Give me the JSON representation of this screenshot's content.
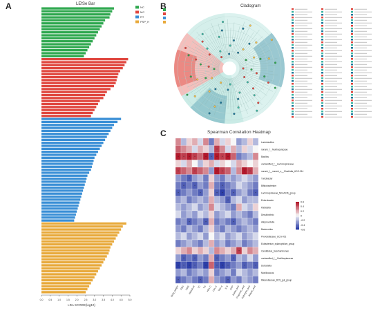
{
  "panels": {
    "a": {
      "letter": "A",
      "title": "LEfSe Bar",
      "xlabel": "LDA SCORE(log10)"
    },
    "b": {
      "letter": "B",
      "title": "Cladogram"
    },
    "c": {
      "letter": "C",
      "title": "Spearman Correlation Heatmap"
    }
  },
  "colors": {
    "NC": "#2fa84f",
    "MC": "#e0473f",
    "RT": "#3a8fd6",
    "PSP_H": "#e8a93a"
  },
  "chart_data": [
    {
      "type": "bar",
      "title": "LEfSe Bar",
      "xlabel": "LDA SCORE(log10)",
      "xlim": [
        0,
        5
      ],
      "xticks": [
        "0.0",
        "0.5",
        "1.0",
        "1.5",
        "2.0",
        "2.5",
        "3.0",
        "3.5",
        "4.0",
        "4.5",
        "5.0"
      ],
      "legend": [
        "NC",
        "MC",
        "RT",
        "PSP_H"
      ],
      "legend_position": "top-right",
      "series": [
        {
          "name": "NC",
          "values": [
            4.1,
            4.0,
            3.9,
            3.85,
            3.6,
            3.5,
            3.4,
            3.3,
            3.2,
            3.1,
            3.0,
            2.9,
            2.8,
            2.7,
            2.6,
            2.5,
            2.4
          ]
        },
        {
          "name": "MC",
          "values": [
            4.9,
            4.8,
            4.7,
            4.6,
            4.45,
            4.35,
            4.3,
            4.25,
            4.2,
            4.1,
            3.9,
            3.7,
            3.6,
            3.5,
            3.3,
            3.2,
            3.1,
            3.0,
            2.9,
            2.8
          ]
        },
        {
          "name": "RT",
          "values": [
            4.5,
            4.3,
            4.1,
            4.0,
            3.9,
            3.8,
            3.7,
            3.6,
            3.5,
            3.4,
            3.3,
            3.2,
            3.1,
            3.0,
            2.95,
            2.9,
            2.85,
            2.8,
            2.7,
            2.6,
            2.55,
            2.5,
            2.45,
            2.4,
            2.35,
            2.3,
            2.25,
            2.2,
            2.15,
            2.1,
            2.05,
            2.0,
            1.95,
            1.9,
            1.85
          ]
        },
        {
          "name": "PSP_H",
          "values": [
            4.8,
            4.6,
            4.5,
            4.4,
            4.3,
            4.2,
            4.1,
            4.0,
            3.9,
            3.85,
            3.8,
            3.7,
            3.6,
            3.5,
            3.4,
            3.3,
            3.2,
            3.1,
            3.0,
            2.9,
            2.8,
            2.7,
            2.6,
            2.5
          ]
        }
      ]
    },
    {
      "type": "heatmap",
      "title": "Spearman Correlation Heatmap",
      "rows": [
        "Lactobacillus",
        "norank_f__Muribaculaceae",
        "Bacillus",
        "unclassified_f__Lachnospiraceae",
        "norank_f__norank_o__Clostridia_UCG-014",
        "Turicibacter",
        "Bifidobacterium",
        "Lachnospiraceae_NK4A136_group",
        "Enterobacter",
        "Klebsiella",
        "Desulfovibrio",
        "Alloprevotella",
        "Bacteroides",
        "Prevotellaceae_UCG-001",
        "Eubacterium_xylanophilum_group",
        "Candidatus_Saccharimonas",
        "unclassified_f__Oscillospiraceae",
        "Dubosiella",
        "Monilicoccus",
        "Rikenellaceae_RC9_gut_group"
      ],
      "columns": [
        "Body_weight",
        "FBG",
        "FINS",
        "HOMA-IR",
        "TC",
        "TG",
        "HDL-C",
        "LDL-C",
        "TNF-α",
        "IL-6",
        "CRP",
        "Acetic_acid",
        "Propionic_acid",
        "Isobutyric_acid",
        "Butyric_acid"
      ],
      "colorbar": [
        "0.6",
        "0.4",
        "0.2",
        "0",
        "-0.2",
        "-0.4",
        "-0.6"
      ],
      "values": [
        [
          0.3,
          -0.2,
          0.1,
          0.2,
          -0.1,
          0.3,
          -0.4,
          0.2,
          -0.1,
          0.1,
          0.0,
          -0.3,
          -0.2,
          0.1,
          -0.2
        ],
        [
          0.4,
          0.3,
          0.2,
          -0.1,
          0.2,
          0.1,
          -0.2,
          0.5,
          0.3,
          -0.1,
          0.2,
          -0.2,
          0.1,
          -0.1,
          0.0
        ],
        [
          0.6,
          0.5,
          0.6,
          0.5,
          0.4,
          0.6,
          -0.5,
          0.6,
          0.5,
          0.6,
          0.4,
          -0.4,
          -0.3,
          -0.2,
          0.3
        ],
        [
          0.1,
          -0.1,
          0.2,
          0.0,
          -0.2,
          0.1,
          0.2,
          -0.1,
          0.1,
          0.0,
          -0.1,
          0.2,
          0.1,
          0.0,
          0.1
        ],
        [
          0.5,
          0.4,
          0.3,
          0.5,
          0.4,
          0.3,
          -0.3,
          0.6,
          0.5,
          0.4,
          -0.2,
          0.3,
          0.6,
          0.5,
          0.2
        ],
        [
          -0.3,
          -0.4,
          -0.5,
          -0.3,
          -0.2,
          -0.4,
          0.1,
          -0.3,
          -0.4,
          -0.2,
          -0.3,
          -0.2,
          -0.1,
          -0.2,
          -0.3
        ],
        [
          -0.4,
          -0.5,
          -0.4,
          -0.5,
          -0.3,
          -0.4,
          0.2,
          -0.4,
          -0.5,
          -0.4,
          -0.3,
          -0.1,
          -0.2,
          -0.3,
          -0.4
        ],
        [
          -0.5,
          -0.4,
          -0.3,
          -0.4,
          -0.5,
          -0.3,
          0.1,
          -0.5,
          -0.6,
          -0.4,
          -0.5,
          -0.3,
          -0.2,
          -0.4,
          -0.5
        ],
        [
          -0.3,
          -0.2,
          -0.4,
          -0.3,
          -0.2,
          -0.3,
          0.2,
          -0.2,
          -0.3,
          -0.5,
          -0.2,
          -0.1,
          -0.3,
          -0.2,
          -0.2
        ],
        [
          -0.2,
          -0.3,
          -0.2,
          -0.1,
          -0.3,
          -0.2,
          0.3,
          -0.1,
          -0.2,
          -0.3,
          -0.4,
          0.2,
          -0.1,
          -0.2,
          0.1
        ],
        [
          -0.1,
          -0.3,
          -0.2,
          -0.3,
          -0.1,
          -0.2,
          0.1,
          -0.3,
          -0.2,
          -0.1,
          -0.3,
          -0.2,
          -0.3,
          -0.4,
          -0.2
        ],
        [
          -0.4,
          -0.3,
          -0.5,
          -0.4,
          -0.3,
          -0.5,
          0.2,
          -0.4,
          -0.3,
          -0.4,
          -0.5,
          -0.3,
          -0.2,
          -0.3,
          -0.4
        ],
        [
          -0.3,
          -0.4,
          -0.2,
          -0.3,
          -0.4,
          -0.2,
          0.1,
          -0.3,
          -0.4,
          -0.2,
          -0.3,
          -0.4,
          -0.3,
          -0.2,
          -0.3
        ],
        [
          -0.2,
          -0.1,
          -0.3,
          -0.2,
          -0.1,
          -0.3,
          0.0,
          -0.2,
          -0.1,
          -0.3,
          -0.2,
          -0.1,
          -0.3,
          -0.2,
          -0.1
        ],
        [
          -0.4,
          -0.3,
          -0.2,
          -0.3,
          -0.4,
          -0.2,
          0.2,
          -0.3,
          -0.2,
          -0.4,
          -0.3,
          -0.2,
          -0.4,
          -0.3,
          -0.2
        ],
        [
          0.1,
          0.2,
          0.3,
          0.1,
          0.2,
          0.1,
          -0.2,
          0.3,
          0.2,
          0.1,
          0.2,
          0.5,
          0.1,
          0.3,
          0.2
        ],
        [
          -0.3,
          -0.5,
          -0.4,
          -0.5,
          -0.3,
          -0.4,
          0.2,
          -0.5,
          -0.4,
          -0.3,
          -0.5,
          -0.2,
          -0.3,
          -0.1,
          -0.3
        ],
        [
          -0.6,
          -0.5,
          -0.6,
          -0.5,
          -0.4,
          -0.6,
          0.4,
          -0.5,
          -0.6,
          -0.5,
          -0.4,
          -0.3,
          -0.5,
          -0.4,
          -0.5
        ],
        [
          -0.3,
          -0.2,
          -0.4,
          -0.3,
          -0.2,
          -0.3,
          0.1,
          -0.4,
          -0.3,
          -0.2,
          -0.4,
          -0.1,
          -0.2,
          -0.3,
          -0.2
        ],
        [
          -0.5,
          -0.4,
          -0.3,
          -0.4,
          -0.5,
          -0.4,
          0.2,
          -0.3,
          -0.4,
          -0.5,
          -0.3,
          -0.4,
          -0.2,
          -0.3,
          -0.4
        ]
      ],
      "colors": {
        "high": "#b2182b",
        "mid": "#f7f7f7",
        "low": "#2c3ea8"
      }
    }
  ]
}
